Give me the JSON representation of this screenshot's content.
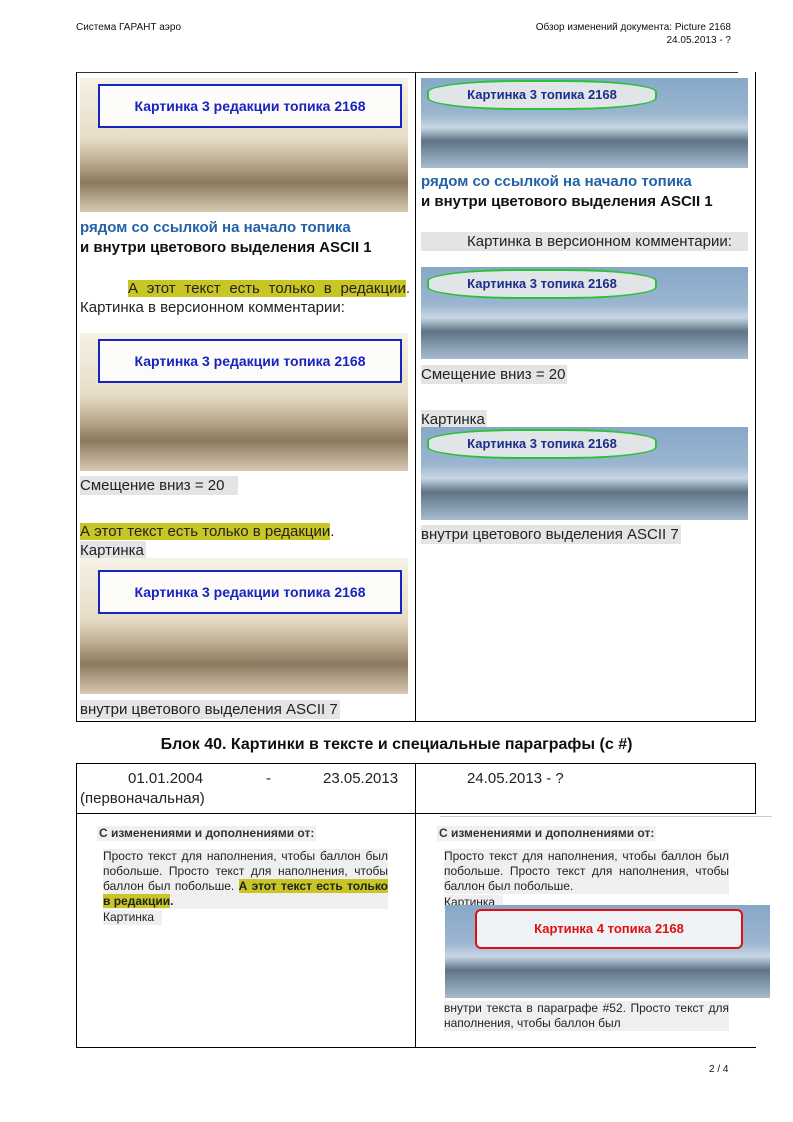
{
  "header": {
    "left": "Система ГАРАНТ аэро",
    "right_line1": "Обзор изменений документа: Picture 2168",
    "right_line2": "24.05.2013 - ?"
  },
  "left_col": {
    "pic1_caption": "Картинка 3 редакции топика 2168",
    "link_text": "рядом со ссылкой на начало топика",
    "ascii_text": "и внутри цветового выделения ASCII 1",
    "p1_highlight": "А этот текст есть только в редакции",
    "p1_rest": ". Картинка в версионном комментарии:",
    "pic2_caption": "Картинка 3 редакции топика 2168",
    "shift_text": "Смещение вниз = 20",
    "p2_highlight": "А этот текст есть только в редакции",
    "p2_rest": ".",
    "pic_label": "Картинка",
    "pic3_caption": "Картинка 3 редакции топика 2168",
    "ascii7": "внутри цветового выделения ASCII 7"
  },
  "right_col": {
    "pic1_caption": "Картинка 3 топика 2168",
    "link_text": "рядом со ссылкой на начало топика",
    "ascii_text": "и внутри цветового выделения ASCII 1",
    "p1_text": "Картинка в версионном комментарии:",
    "pic2_caption": "Картинка 3 топика 2168",
    "shift_text": "Смещение вниз = 20",
    "pic_label": "Картинка",
    "pic3_caption": "Картинка 3 топика 2168",
    "ascii7": "внутри цветового выделения ASCII 7"
  },
  "block40": {
    "title": "Блок 40. Картинки в тексте и специальные параграфы (с #)",
    "left_date_from": "01.01.2004",
    "left_dash": "-",
    "left_date_to": "23.05.2013",
    "left_note": "(первоначальная)",
    "right_date": "24.05.2013 - ?",
    "changes_label": "С изменениями и дополнениями от:",
    "left_text": "Просто текст для наполнения, чтобы баллон был побольше. Просто текст для наполнения, чтобы баллон был побольше.",
    "left_highlight": "А этот текст есть только в редакции",
    "left_dot": ".",
    "left_pic_label": "Картинка",
    "right_text": "Просто текст для наполнения, чтобы баллон был побольше. Просто текст для наполнения, чтобы баллон был побольше.",
    "right_pic_label": "Картинка",
    "right_pic_caption": "Картинка 4 топика 2168",
    "right_tail": "внутри текста в параграфе #52. Просто текст для наполнения, чтобы баллон был"
  },
  "footer": {
    "page": "2 / 4"
  }
}
